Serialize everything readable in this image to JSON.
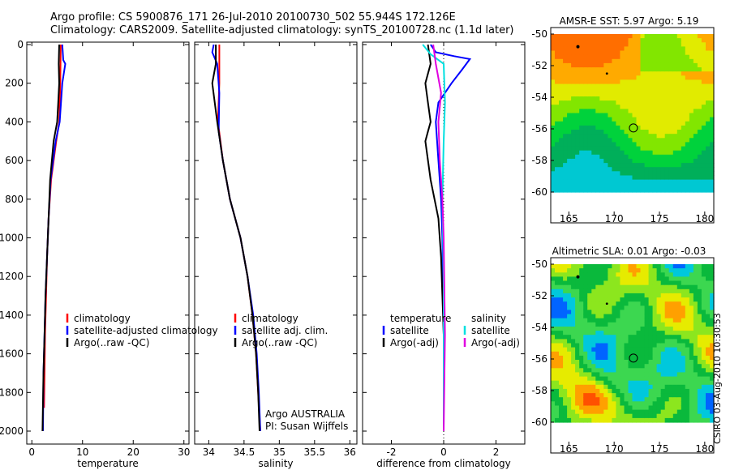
{
  "header": {
    "line1": "Argo profile: CS 5900876_171 26-Jul-2010 20100730_502 55.944S 172.126E",
    "line2": "Climatology: CARS2009. Satellite-adjusted climatology: synTS_20100728.nc (1.1d later)"
  },
  "side_stamp": "CSIRO 03-Aug-2010 10:30:53",
  "colors": {
    "climatology": "#ff0000",
    "satellite": "#0000ff",
    "argo": "#000000",
    "salinity_satellite": "#00e0e0",
    "salinity_argo": "#e000e0"
  },
  "chart_data": [
    {
      "type": "line",
      "xlabel": "temperature",
      "x_ticks": [
        "0",
        "10",
        "20",
        "30"
      ],
      "xlim": [
        -1,
        31
      ],
      "y_ticks": [
        "0",
        "200",
        "400",
        "600",
        "800",
        "1000",
        "1200",
        "1400",
        "1600",
        "1800",
        "2000"
      ],
      "ylim": [
        0,
        2050
      ],
      "y_reversed": true,
      "legend": {
        "placement": "lower-center",
        "entries": [
          "climatology",
          "satellite-adjusted climatology",
          "Argo(..raw -QC)"
        ]
      },
      "series": [
        {
          "name": "climatology",
          "color": "#ff0000",
          "points": [
            [
              5.7,
              0
            ],
            [
              5.6,
              200
            ],
            [
              5.4,
              400
            ],
            [
              4.8,
              500
            ],
            [
              3.8,
              700
            ],
            [
              3.3,
              900
            ],
            [
              3.0,
              1100
            ],
            [
              2.8,
              1300
            ],
            [
              2.6,
              1500
            ],
            [
              2.5,
              1700
            ],
            [
              2.4,
              1880
            ]
          ]
        },
        {
          "name": "satellite-adjusted climatology",
          "color": "#0000ff",
          "points": [
            [
              6.0,
              0
            ],
            [
              6.2,
              80
            ],
            [
              6.6,
              100
            ],
            [
              6.0,
              200
            ],
            [
              5.5,
              400
            ],
            [
              4.7,
              500
            ],
            [
              3.7,
              700
            ],
            [
              3.3,
              900
            ],
            [
              3.0,
              1100
            ],
            [
              2.7,
              1300
            ],
            [
              2.5,
              1500
            ],
            [
              2.3,
              1700
            ],
            [
              2.2,
              2000
            ]
          ]
        },
        {
          "name": "Argo(..raw -QC)",
          "color": "#000000",
          "points": [
            [
              5.4,
              0
            ],
            [
              5.3,
              100
            ],
            [
              5.4,
              200
            ],
            [
              5.2,
              300
            ],
            [
              5.0,
              400
            ],
            [
              4.3,
              500
            ],
            [
              3.6,
              700
            ],
            [
              3.3,
              900
            ],
            [
              3.0,
              1100
            ],
            [
              2.7,
              1300
            ],
            [
              2.5,
              1500
            ],
            [
              2.3,
              1700
            ],
            [
              2.1,
              2000
            ]
          ]
        }
      ]
    },
    {
      "type": "line",
      "xlabel": "salinity",
      "x_ticks": [
        "34",
        "34.5",
        "35",
        "35.5",
        "36"
      ],
      "xlim": [
        33.8,
        36.1
      ],
      "ylim": [
        0,
        2050
      ],
      "y_reversed": true,
      "legend": {
        "placement": "lower-center",
        "entries": [
          "climatology",
          "satellite adj. clim.",
          "Argo(..raw -QC)"
        ]
      },
      "annotations": [
        "Argo AUSTRALIA",
        "PI: Susan Wijffels"
      ],
      "series": [
        {
          "name": "climatology",
          "color": "#ff0000",
          "points": [
            [
              34.15,
              0
            ],
            [
              34.15,
              200
            ],
            [
              34.13,
              400
            ],
            [
              34.2,
              600
            ],
            [
              34.3,
              800
            ],
            [
              34.45,
              1000
            ],
            [
              34.55,
              1200
            ],
            [
              34.62,
              1400
            ],
            [
              34.67,
              1600
            ],
            [
              34.7,
              1800
            ],
            [
              34.73,
              2000
            ]
          ]
        },
        {
          "name": "satellite adj. clim.",
          "color": "#0000ff",
          "points": [
            [
              34.07,
              0
            ],
            [
              34.05,
              40
            ],
            [
              34.12,
              100
            ],
            [
              34.15,
              250
            ],
            [
              34.14,
              450
            ],
            [
              34.2,
              600
            ],
            [
              34.3,
              800
            ],
            [
              34.45,
              1000
            ],
            [
              34.55,
              1200
            ],
            [
              34.63,
              1400
            ],
            [
              34.68,
              1600
            ],
            [
              34.71,
              1800
            ],
            [
              34.73,
              2000
            ]
          ]
        },
        {
          "name": "Argo(..raw -QC)",
          "color": "#000000",
          "points": [
            [
              34.1,
              0
            ],
            [
              34.1,
              100
            ],
            [
              34.05,
              200
            ],
            [
              34.12,
              400
            ],
            [
              34.2,
              600
            ],
            [
              34.3,
              800
            ],
            [
              34.45,
              1000
            ],
            [
              34.55,
              1200
            ],
            [
              34.62,
              1400
            ],
            [
              34.67,
              1600
            ],
            [
              34.7,
              1800
            ],
            [
              34.72,
              2000
            ]
          ]
        }
      ]
    },
    {
      "type": "line",
      "xlabel": "difference from climatology",
      "x_ticks": [
        "-2",
        "0",
        "2"
      ],
      "xlim": [
        -3.1,
        3.1
      ],
      "ylim": [
        0,
        2050
      ],
      "y_reversed": true,
      "legend": {
        "placement": "lower-center",
        "groups": [
          {
            "title": "temperature",
            "entries": [
              "satellite",
              "Argo(-adj)"
            ]
          },
          {
            "title": "salinity",
            "entries": [
              "satellite",
              "Argo(-adj)"
            ]
          }
        ]
      },
      "series": [
        {
          "name": "temperature satellite",
          "color": "#0000ff",
          "points": [
            [
              -0.5,
              0
            ],
            [
              -0.3,
              40
            ],
            [
              0.4,
              60
            ],
            [
              1.0,
              75
            ],
            [
              0.7,
              130
            ],
            [
              0.3,
              200
            ],
            [
              -0.2,
              300
            ],
            [
              -0.3,
              400
            ],
            [
              -0.2,
              600
            ],
            [
              -0.1,
              800
            ],
            [
              -0.05,
              1000
            ],
            [
              0.0,
              1500
            ],
            [
              0.0,
              2000
            ]
          ]
        },
        {
          "name": "temperature Argo(-adj)",
          "color": "#000000",
          "points": [
            [
              -0.6,
              0
            ],
            [
              -0.5,
              100
            ],
            [
              -0.7,
              200
            ],
            [
              -0.6,
              300
            ],
            [
              -0.5,
              400
            ],
            [
              -0.6,
              450
            ],
            [
              -0.7,
              500
            ],
            [
              -0.5,
              700
            ],
            [
              -0.2,
              900
            ],
            [
              -0.1,
              1100
            ],
            [
              0.0,
              1500
            ],
            [
              0.0,
              2000
            ]
          ]
        },
        {
          "name": "salinity satellite",
          "color": "#00e0e0",
          "points": [
            [
              -0.8,
              0
            ],
            [
              -0.5,
              50
            ],
            [
              0.0,
              100
            ],
            [
              0.05,
              300
            ],
            [
              0.0,
              500
            ],
            [
              -0.05,
              800
            ],
            [
              0.0,
              1200
            ],
            [
              0.0,
              2000
            ]
          ]
        },
        {
          "name": "salinity Argo(-adj)",
          "color": "#e000e0",
          "points": [
            [
              -0.4,
              0
            ],
            [
              -0.3,
              100
            ],
            [
              -0.1,
              250
            ],
            [
              -0.2,
              400
            ],
            [
              -0.15,
              600
            ],
            [
              -0.05,
              800
            ],
            [
              0.0,
              1000
            ],
            [
              0.05,
              1500
            ],
            [
              0.0,
              2000
            ]
          ]
        }
      ]
    },
    {
      "type": "heatmap",
      "title": "AMSR-E SST: 5.97 Argo: 5.19",
      "x_ticks": [
        "165",
        "170",
        "175",
        "180"
      ],
      "xlim": [
        163,
        181
      ],
      "y_ticks": [
        "-50",
        "-52",
        "-54",
        "-56",
        "-58",
        "-60"
      ],
      "ylim": [
        -60,
        -50
      ],
      "marker": {
        "lon": 172.126,
        "lat": -55.944
      }
    },
    {
      "type": "heatmap",
      "title": "Altimetric SLA: 0.01 Argo: -0.03",
      "x_ticks": [
        "165",
        "170",
        "175",
        "180"
      ],
      "xlim": [
        163,
        181
      ],
      "y_ticks": [
        "-50",
        "-52",
        "-54",
        "-56",
        "-58",
        "-60"
      ],
      "ylim": [
        -60,
        -50
      ],
      "marker": {
        "lon": 172.126,
        "lat": -55.944
      }
    }
  ]
}
